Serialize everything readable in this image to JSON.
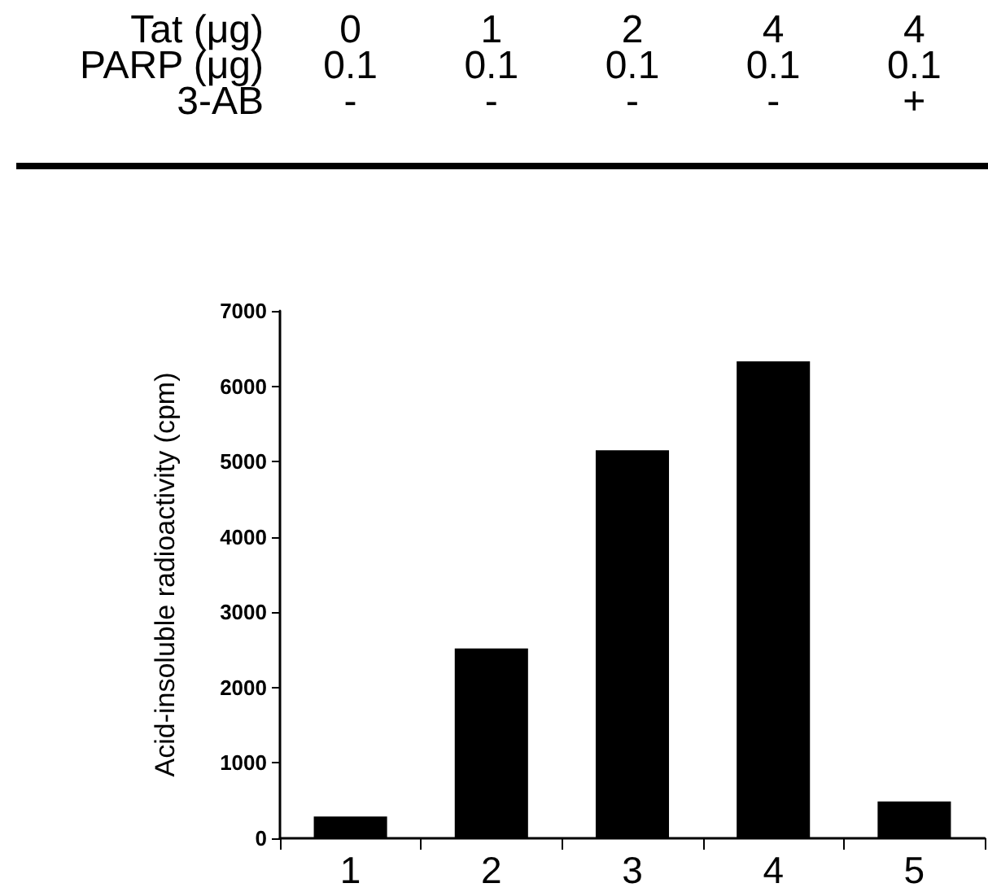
{
  "chart_data": {
    "type": "bar",
    "ylabel": "Acid-insoluble radioactivity (cpm)",
    "categories": [
      "1",
      "2",
      "3",
      "4",
      "5"
    ],
    "values": [
      290,
      2520,
      5150,
      6330,
      490
    ],
    "color": "#000000",
    "ylim": [
      0,
      7000
    ],
    "yticks": [
      0,
      1000,
      2000,
      3000,
      4000,
      5000,
      6000,
      7000
    ],
    "grid": false,
    "annotations": [
      "Tat (μg)",
      "0",
      "1",
      "2",
      "4",
      "4",
      "PARP (μg)",
      "0.1",
      "0.1",
      "0.1",
      "0.1",
      "0.1",
      "3-AB",
      "-",
      "-",
      "-",
      "-",
      "+"
    ]
  }
}
